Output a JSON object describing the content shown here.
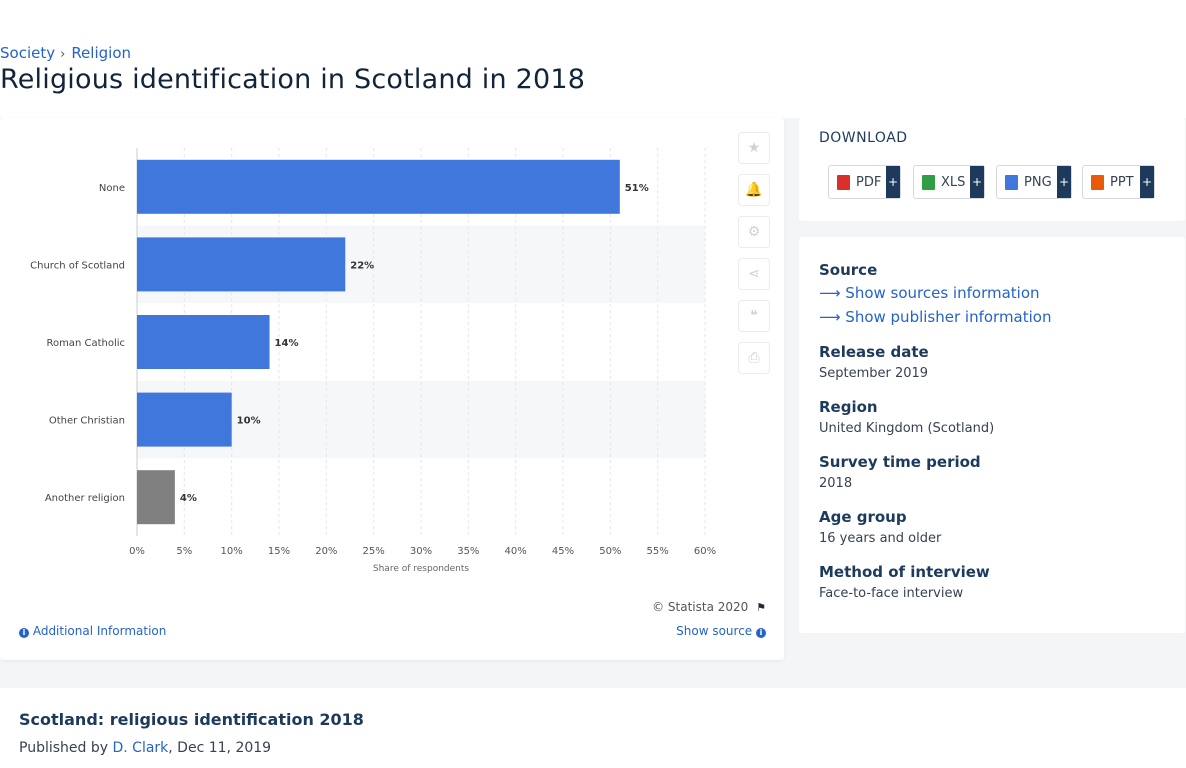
{
  "breadcrumb": {
    "items": [
      "Society",
      "Religion"
    ],
    "separator": "›"
  },
  "page_title": "Religious identification in Scotland in 2018",
  "chart_data": {
    "type": "bar",
    "orientation": "horizontal",
    "categories": [
      "None",
      "Church of Scotland",
      "Roman Catholic",
      "Other Christian",
      "Another religion"
    ],
    "values": [
      51,
      22,
      14,
      10,
      4
    ],
    "data_labels": [
      "51%",
      "22%",
      "14%",
      "10%",
      "4%"
    ],
    "bar_colors": [
      "#3f77dd",
      "#3f77dd",
      "#3f77dd",
      "#3f77dd",
      "#808080"
    ],
    "xlabel": "Share of respondents",
    "xlim": [
      0,
      60
    ],
    "xticks": [
      "0%",
      "5%",
      "10%",
      "15%",
      "20%",
      "25%",
      "30%",
      "35%",
      "40%",
      "45%",
      "50%",
      "55%",
      "60%"
    ],
    "grid": true
  },
  "chart_tools": [
    {
      "name": "favorite-icon",
      "glyph": "★"
    },
    {
      "name": "notification-icon",
      "glyph": "🔔"
    },
    {
      "name": "settings-icon",
      "glyph": "⚙"
    },
    {
      "name": "share-icon",
      "glyph": "⋖"
    },
    {
      "name": "citation-icon",
      "glyph": "❝"
    },
    {
      "name": "print-icon",
      "glyph": "⎙"
    }
  ],
  "copyright": "© Statista 2020",
  "additional_info": "Additional Information",
  "show_source": "Show source",
  "download": {
    "title": "DOWNLOAD",
    "buttons": [
      {
        "label": "PDF",
        "color": "#d9302c"
      },
      {
        "label": "XLS",
        "color": "#2f9e44"
      },
      {
        "label": "PNG",
        "color": "#3f77dd"
      },
      {
        "label": "PPT",
        "color": "#e8590c"
      }
    ],
    "plus": "+"
  },
  "info": {
    "source_label": "Source",
    "show_sources": "Show sources information",
    "show_publisher": "Show publisher information",
    "release_date_label": "Release date",
    "release_date": "September 2019",
    "region_label": "Region",
    "region": "United Kingdom (Scotland)",
    "survey_label": "Survey time period",
    "survey": "2018",
    "age_label": "Age group",
    "age": "16 years and older",
    "method_label": "Method of interview",
    "method": "Face-to-face interview"
  },
  "bottom": {
    "title": "Scotland: religious identification 2018",
    "published_prefix": "Published by",
    "author": "D. Clark",
    "date": ", Dec 11, 2019"
  }
}
